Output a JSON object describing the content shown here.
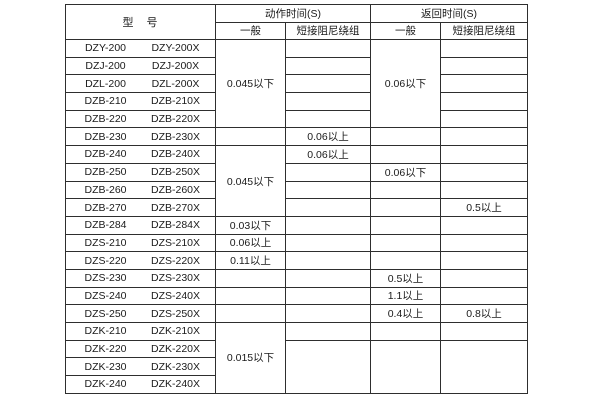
{
  "page": {
    "background": "#ffffff",
    "line_color": "#2e2e2e",
    "text_color": "#1a1a1a"
  },
  "header": {
    "model": "型　号",
    "action_time": "动作时间(S)",
    "return_time": "返回时间(S)",
    "sub_action_general": "一般",
    "sub_action_damped": "短接阻尼绕组",
    "sub_return_general": "一般",
    "sub_return_damped": "短接阻尼绕组"
  },
  "rows": [
    [
      "DZY-200",
      "DZY-200X"
    ],
    [
      "DZJ-200",
      "DZJ-200X"
    ],
    [
      "DZL-200",
      "DZL-200X"
    ],
    [
      "DZB-210",
      "DZB-210X"
    ],
    [
      "DZB-220",
      "DZB-220X"
    ],
    [
      "DZB-230",
      "DZB-230X"
    ],
    [
      "DZB-240",
      "DZB-240X"
    ],
    [
      "DZB-250",
      "DZB-250X"
    ],
    [
      "DZB-260",
      "DZB-260X"
    ],
    [
      "DZB-270",
      "DZB-270X"
    ],
    [
      "DZB-284",
      "DZB-284X"
    ],
    [
      "DZS-210",
      "DZS-210X"
    ],
    [
      "DZS-220",
      "DZS-220X"
    ],
    [
      "DZS-230",
      "DZS-230X"
    ],
    [
      "DZS-240",
      "DZS-240X"
    ],
    [
      "DZS-250",
      "DZS-250X"
    ],
    [
      "DZK-210",
      "DZK-210X"
    ],
    [
      "DZK-220",
      "DZK-220X"
    ],
    [
      "DZK-230",
      "DZK-230X"
    ],
    [
      "DZK-240",
      "DZK-240X"
    ]
  ],
  "columns": {
    "action_general": [
      {
        "span": 5,
        "text": "0.045以下"
      },
      {
        "span": 1,
        "text": ""
      },
      {
        "span": 4,
        "text": "0.045以下"
      },
      {
        "span": 1,
        "text": "0.03以下"
      },
      {
        "span": 1,
        "text": "0.06以上"
      },
      {
        "span": 1,
        "text": "0.11以上"
      },
      {
        "span": 1,
        "text": ""
      },
      {
        "span": 1,
        "text": ""
      },
      {
        "span": 1,
        "text": ""
      },
      {
        "span": 4,
        "text": "0.015以下"
      }
    ],
    "action_damped": [
      {
        "span": 1,
        "text": ""
      },
      {
        "span": 1,
        "text": ""
      },
      {
        "span": 1,
        "text": ""
      },
      {
        "span": 1,
        "text": ""
      },
      {
        "span": 1,
        "text": ""
      },
      {
        "span": 1,
        "text": "0.06以上"
      },
      {
        "span": 1,
        "text": "0.06以上"
      },
      {
        "span": 1,
        "text": ""
      },
      {
        "span": 1,
        "text": ""
      },
      {
        "span": 1,
        "text": ""
      },
      {
        "span": 1,
        "text": ""
      },
      {
        "span": 1,
        "text": ""
      },
      {
        "span": 1,
        "text": ""
      },
      {
        "span": 1,
        "text": ""
      },
      {
        "span": 1,
        "text": ""
      },
      {
        "span": 1,
        "text": ""
      },
      {
        "span": 1,
        "text": ""
      },
      {
        "span": 3,
        "text": ""
      }
    ],
    "return_general": [
      {
        "span": 5,
        "text": "0.06以下"
      },
      {
        "span": 1,
        "text": ""
      },
      {
        "span": 1,
        "text": ""
      },
      {
        "span": 1,
        "text": "0.06以下"
      },
      {
        "span": 1,
        "text": ""
      },
      {
        "span": 1,
        "text": ""
      },
      {
        "span": 1,
        "text": ""
      },
      {
        "span": 1,
        "text": ""
      },
      {
        "span": 1,
        "text": ""
      },
      {
        "span": 1,
        "text": "0.5以上"
      },
      {
        "span": 1,
        "text": "1.1以上"
      },
      {
        "span": 1,
        "text": "0.4以上"
      },
      {
        "span": 1,
        "text": ""
      },
      {
        "span": 3,
        "text": ""
      }
    ],
    "return_damped": [
      {
        "span": 1,
        "text": ""
      },
      {
        "span": 1,
        "text": ""
      },
      {
        "span": 1,
        "text": ""
      },
      {
        "span": 1,
        "text": ""
      },
      {
        "span": 1,
        "text": ""
      },
      {
        "span": 1,
        "text": ""
      },
      {
        "span": 1,
        "text": ""
      },
      {
        "span": 1,
        "text": ""
      },
      {
        "span": 1,
        "text": ""
      },
      {
        "span": 1,
        "text": "0.5以上"
      },
      {
        "span": 1,
        "text": ""
      },
      {
        "span": 1,
        "text": ""
      },
      {
        "span": 1,
        "text": ""
      },
      {
        "span": 1,
        "text": ""
      },
      {
        "span": 1,
        "text": ""
      },
      {
        "span": 1,
        "text": "0.8以上"
      },
      {
        "span": 1,
        "text": ""
      },
      {
        "span": 3,
        "text": ""
      }
    ]
  }
}
